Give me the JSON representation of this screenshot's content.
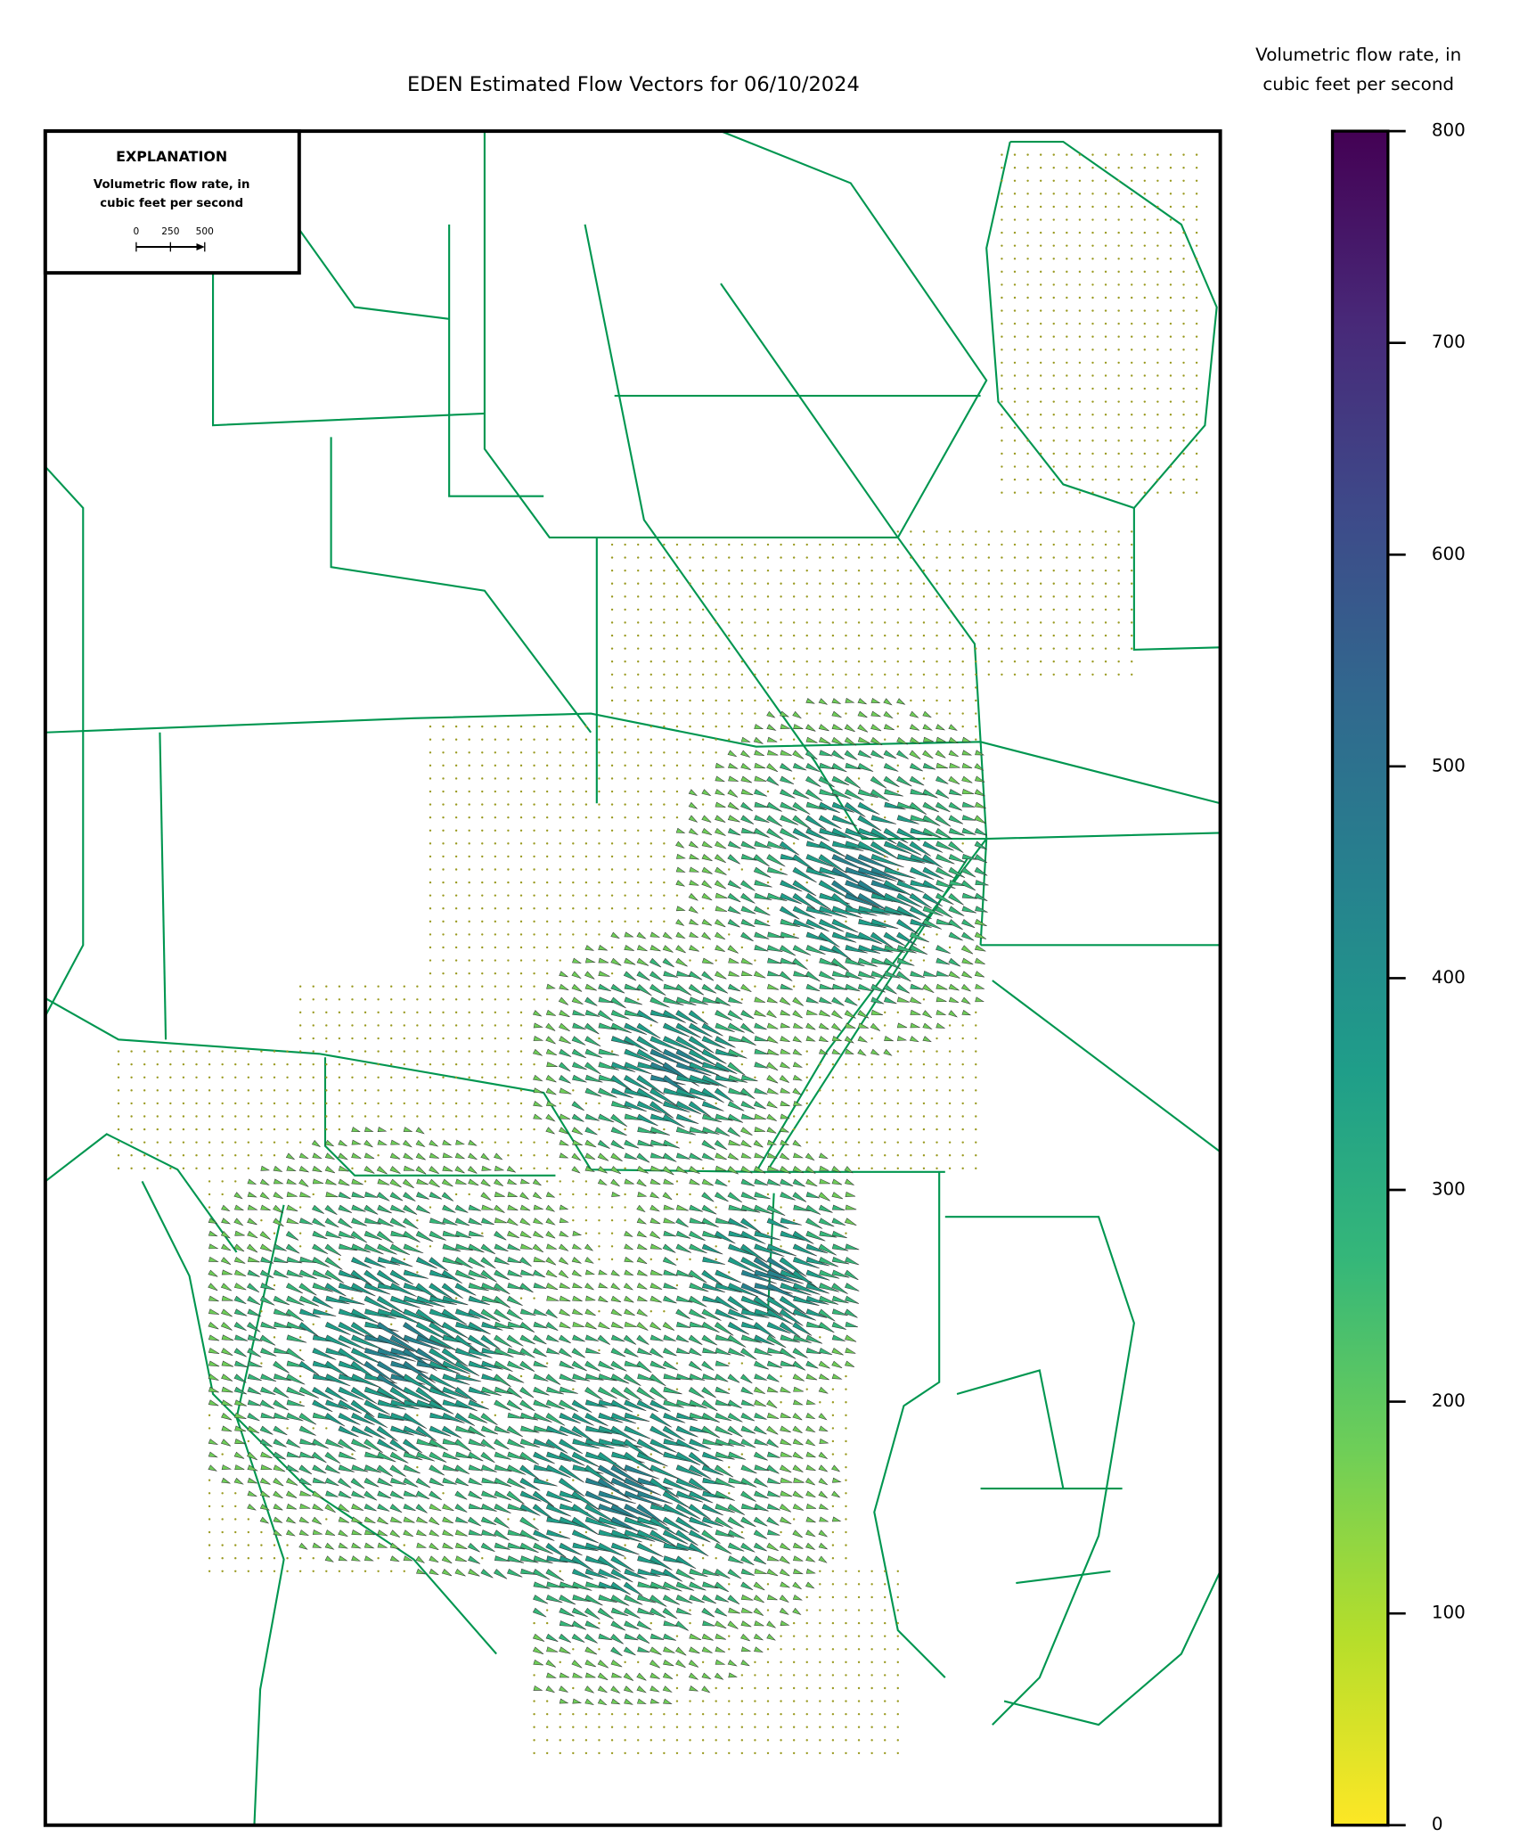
{
  "chart_data": {
    "type": "vector-map",
    "title": "EDEN Estimated Flow Vectors for 06/10/2024",
    "colorbar_label": [
      "Volumetric flow rate, in",
      "cubic feet per second"
    ],
    "colorbar_lim": [
      0,
      800
    ],
    "colorbar_ticks": [
      0,
      100,
      200,
      300,
      400,
      500,
      600,
      700,
      800
    ],
    "colormap": [
      "#fde725",
      "#b5de2b",
      "#6ece58",
      "#35b779",
      "#1f9e89",
      "#26828e",
      "#31688e",
      "#3e4989",
      "#482878",
      "#440154"
    ],
    "legend": {
      "title": "EXPLANATION",
      "subtitle": [
        "Volumetric flow rate, in",
        "cubic feet per second"
      ],
      "scale_ticks": [
        0,
        250,
        500
      ],
      "scale_lim": [
        0,
        500
      ]
    }
  }
}
